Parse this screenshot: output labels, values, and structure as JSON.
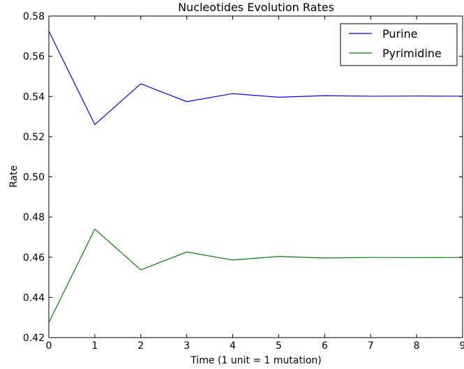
{
  "chart_data": {
    "type": "line",
    "title": "Nucleotides Evolution Rates",
    "xlabel": "Time (1 unit = 1 mutation)",
    "ylabel": "Rate",
    "xlim": [
      0,
      9
    ],
    "ylim": [
      0.42,
      0.58
    ],
    "x": [
      0,
      1,
      2,
      3,
      4,
      5,
      6,
      7,
      8,
      9
    ],
    "x_ticks": [
      "0",
      "1",
      "2",
      "3",
      "4",
      "5",
      "6",
      "7",
      "8",
      "9"
    ],
    "y_ticks": [
      "0.42",
      "0.44",
      "0.46",
      "0.48",
      "0.50",
      "0.52",
      "0.54",
      "0.56",
      "0.58"
    ],
    "grid": false,
    "legend_position": "top-right",
    "series": [
      {
        "name": "Purine",
        "color": "#0000ff",
        "values": [
          0.5725,
          0.526,
          0.5463,
          0.5374,
          0.5414,
          0.5396,
          0.5404,
          0.5401,
          0.5402,
          0.5401
        ]
      },
      {
        "name": "Pyrimidine",
        "color": "#008000",
        "values": [
          0.4275,
          0.474,
          0.4537,
          0.4626,
          0.4586,
          0.4604,
          0.4596,
          0.4599,
          0.4598,
          0.4599
        ]
      }
    ]
  }
}
